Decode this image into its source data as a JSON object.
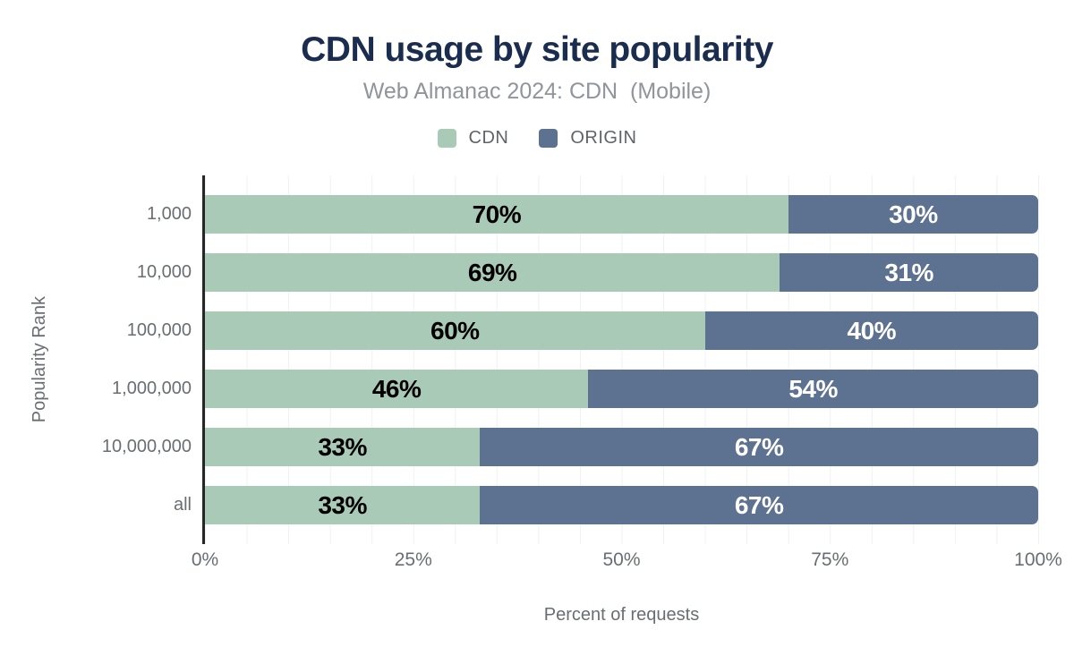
{
  "header": {
    "title": "CDN usage by site popularity",
    "subtitle": "Web Almanac 2024: CDN  (Mobile)"
  },
  "legend": [
    {
      "label": "CDN",
      "color": "#a8cab7"
    },
    {
      "label": "ORIGIN",
      "color": "#5d7190"
    }
  ],
  "chart_data": {
    "type": "bar",
    "orientation": "horizontal",
    "stacked": true,
    "title": "CDN usage by site popularity",
    "subtitle": "Web Almanac 2024: CDN  (Mobile)",
    "categories": [
      "1,000",
      "10,000",
      "100,000",
      "1,000,000",
      "10,000,000",
      "all"
    ],
    "series": [
      {
        "name": "CDN",
        "color": "#a8cab7",
        "label_color": "#000000",
        "values": [
          70,
          69,
          60,
          46,
          33,
          33
        ]
      },
      {
        "name": "ORIGIN",
        "color": "#5d7190",
        "label_color": "#ffffff",
        "values": [
          30,
          31,
          40,
          54,
          67,
          67
        ]
      }
    ],
    "xlabel": "Percent of requests",
    "ylabel": "Popularity Rank",
    "x_ticks": [
      "0%",
      "25%",
      "50%",
      "75%",
      "100%"
    ],
    "xlim": [
      0,
      100
    ],
    "value_suffix": "%",
    "grid": "vertical every 5%",
    "legend_position": "top"
  }
}
